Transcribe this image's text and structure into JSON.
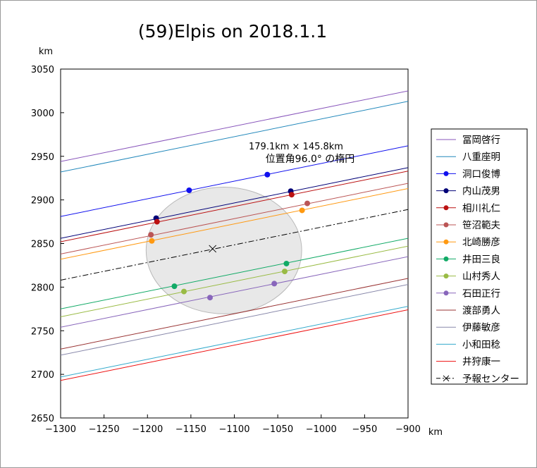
{
  "chart_data": {
    "type": "line",
    "title": "(59)Elpis on 2018.1.1",
    "xunit": "km",
    "yunit": "km",
    "xlim": [
      -1300,
      -900
    ],
    "ylim": [
      2650,
      3050
    ],
    "xticks": [
      -1300,
      -1250,
      -1200,
      -1150,
      -1100,
      -1050,
      -1000,
      -950,
      -900
    ],
    "xtick_labels": [
      "−1300",
      "−1250",
      "−1200",
      "−1150",
      "−1100",
      "−1050",
      "−1000",
      "−950",
      "−900"
    ],
    "yticks": [
      2650,
      2700,
      2750,
      2800,
      2850,
      2900,
      2950,
      3000,
      3050
    ],
    "grid": false,
    "legend_position": "right",
    "ellipse": {
      "label_line1": "179.1km × 145.8km",
      "label_line2": "位置角96.0° の楕円",
      "center": [
        -1112,
        2842
      ],
      "major_km": 179.1,
      "minor_km": 145.8,
      "fill": "#e8e8e8",
      "stroke": "#b8b8b8"
    },
    "series": [
      {
        "name": "冨岡啓行",
        "color": "#8855bb",
        "line": [
          [
            -1300,
            2944
          ],
          [
            -900,
            3025
          ]
        ],
        "points": []
      },
      {
        "name": "八重座明",
        "color": "#2288bb",
        "line": [
          [
            -1300,
            2932
          ],
          [
            -900,
            3013
          ]
        ],
        "points": []
      },
      {
        "name": "洞口俊博",
        "color": "#1010ee",
        "line": [
          [
            -1300,
            2881
          ],
          [
            -900,
            2962
          ]
        ],
        "points": [
          [
            -1152,
            2911
          ],
          [
            -1062,
            2929
          ]
        ]
      },
      {
        "name": "内山茂男",
        "color": "#000077",
        "line": [
          [
            -1300,
            2856
          ],
          [
            -900,
            2937
          ]
        ],
        "points": [
          [
            -1190,
            2879
          ],
          [
            -1035,
            2910
          ]
        ]
      },
      {
        "name": "相川礼仁",
        "color": "#bb1111",
        "line": [
          [
            -1300,
            2852
          ],
          [
            -900,
            2933
          ]
        ],
        "points": [
          [
            -1189,
            2875
          ],
          [
            -1034,
            2906
          ]
        ]
      },
      {
        "name": "笹沼範夫",
        "color": "#bb5555",
        "line": [
          [
            -1300,
            2838
          ],
          [
            -900,
            2919
          ]
        ],
        "points": [
          [
            -1196,
            2860
          ],
          [
            -1016,
            2896
          ]
        ]
      },
      {
        "name": "北崎勝彦",
        "color": "#ff9911",
        "line": [
          [
            -1300,
            2832
          ],
          [
            -900,
            2913
          ]
        ],
        "points": [
          [
            -1195,
            2853
          ],
          [
            -1022,
            2888
          ]
        ]
      },
      {
        "name": "井田三良",
        "color": "#11aa66",
        "line": [
          [
            -1300,
            2775
          ],
          [
            -900,
            2856
          ]
        ],
        "points": [
          [
            -1169,
            2801
          ],
          [
            -1040,
            2827
          ]
        ]
      },
      {
        "name": "山村秀人",
        "color": "#99bb44",
        "line": [
          [
            -1300,
            2766
          ],
          [
            -900,
            2847
          ]
        ],
        "points": [
          [
            -1158,
            2795
          ],
          [
            -1042,
            2818
          ]
        ]
      },
      {
        "name": "石田正行",
        "color": "#8866bb",
        "line": [
          [
            -1300,
            2754
          ],
          [
            -900,
            2835
          ]
        ],
        "points": [
          [
            -1128,
            2788
          ],
          [
            -1054,
            2804
          ]
        ]
      },
      {
        "name": "渡部勇人",
        "color": "#993333",
        "line": [
          [
            -1300,
            2729
          ],
          [
            -900,
            2810
          ]
        ],
        "points": []
      },
      {
        "name": "伊藤敏彦",
        "color": "#8888aa",
        "line": [
          [
            -1300,
            2722
          ],
          [
            -900,
            2803
          ]
        ],
        "points": []
      },
      {
        "name": "小和田稔",
        "color": "#33aacc",
        "line": [
          [
            -1300,
            2697
          ],
          [
            -900,
            2778
          ]
        ],
        "points": []
      },
      {
        "name": "井狩康一",
        "color": "#ee1111",
        "line": [
          [
            -1300,
            2693
          ],
          [
            -900,
            2774
          ]
        ],
        "points": []
      },
      {
        "name": "予報センター",
        "color": "#000000",
        "dashed": true,
        "line": [
          [
            -1300,
            2808
          ],
          [
            -900,
            2889
          ]
        ],
        "marker": [
          -1125,
          2844
        ]
      }
    ]
  }
}
